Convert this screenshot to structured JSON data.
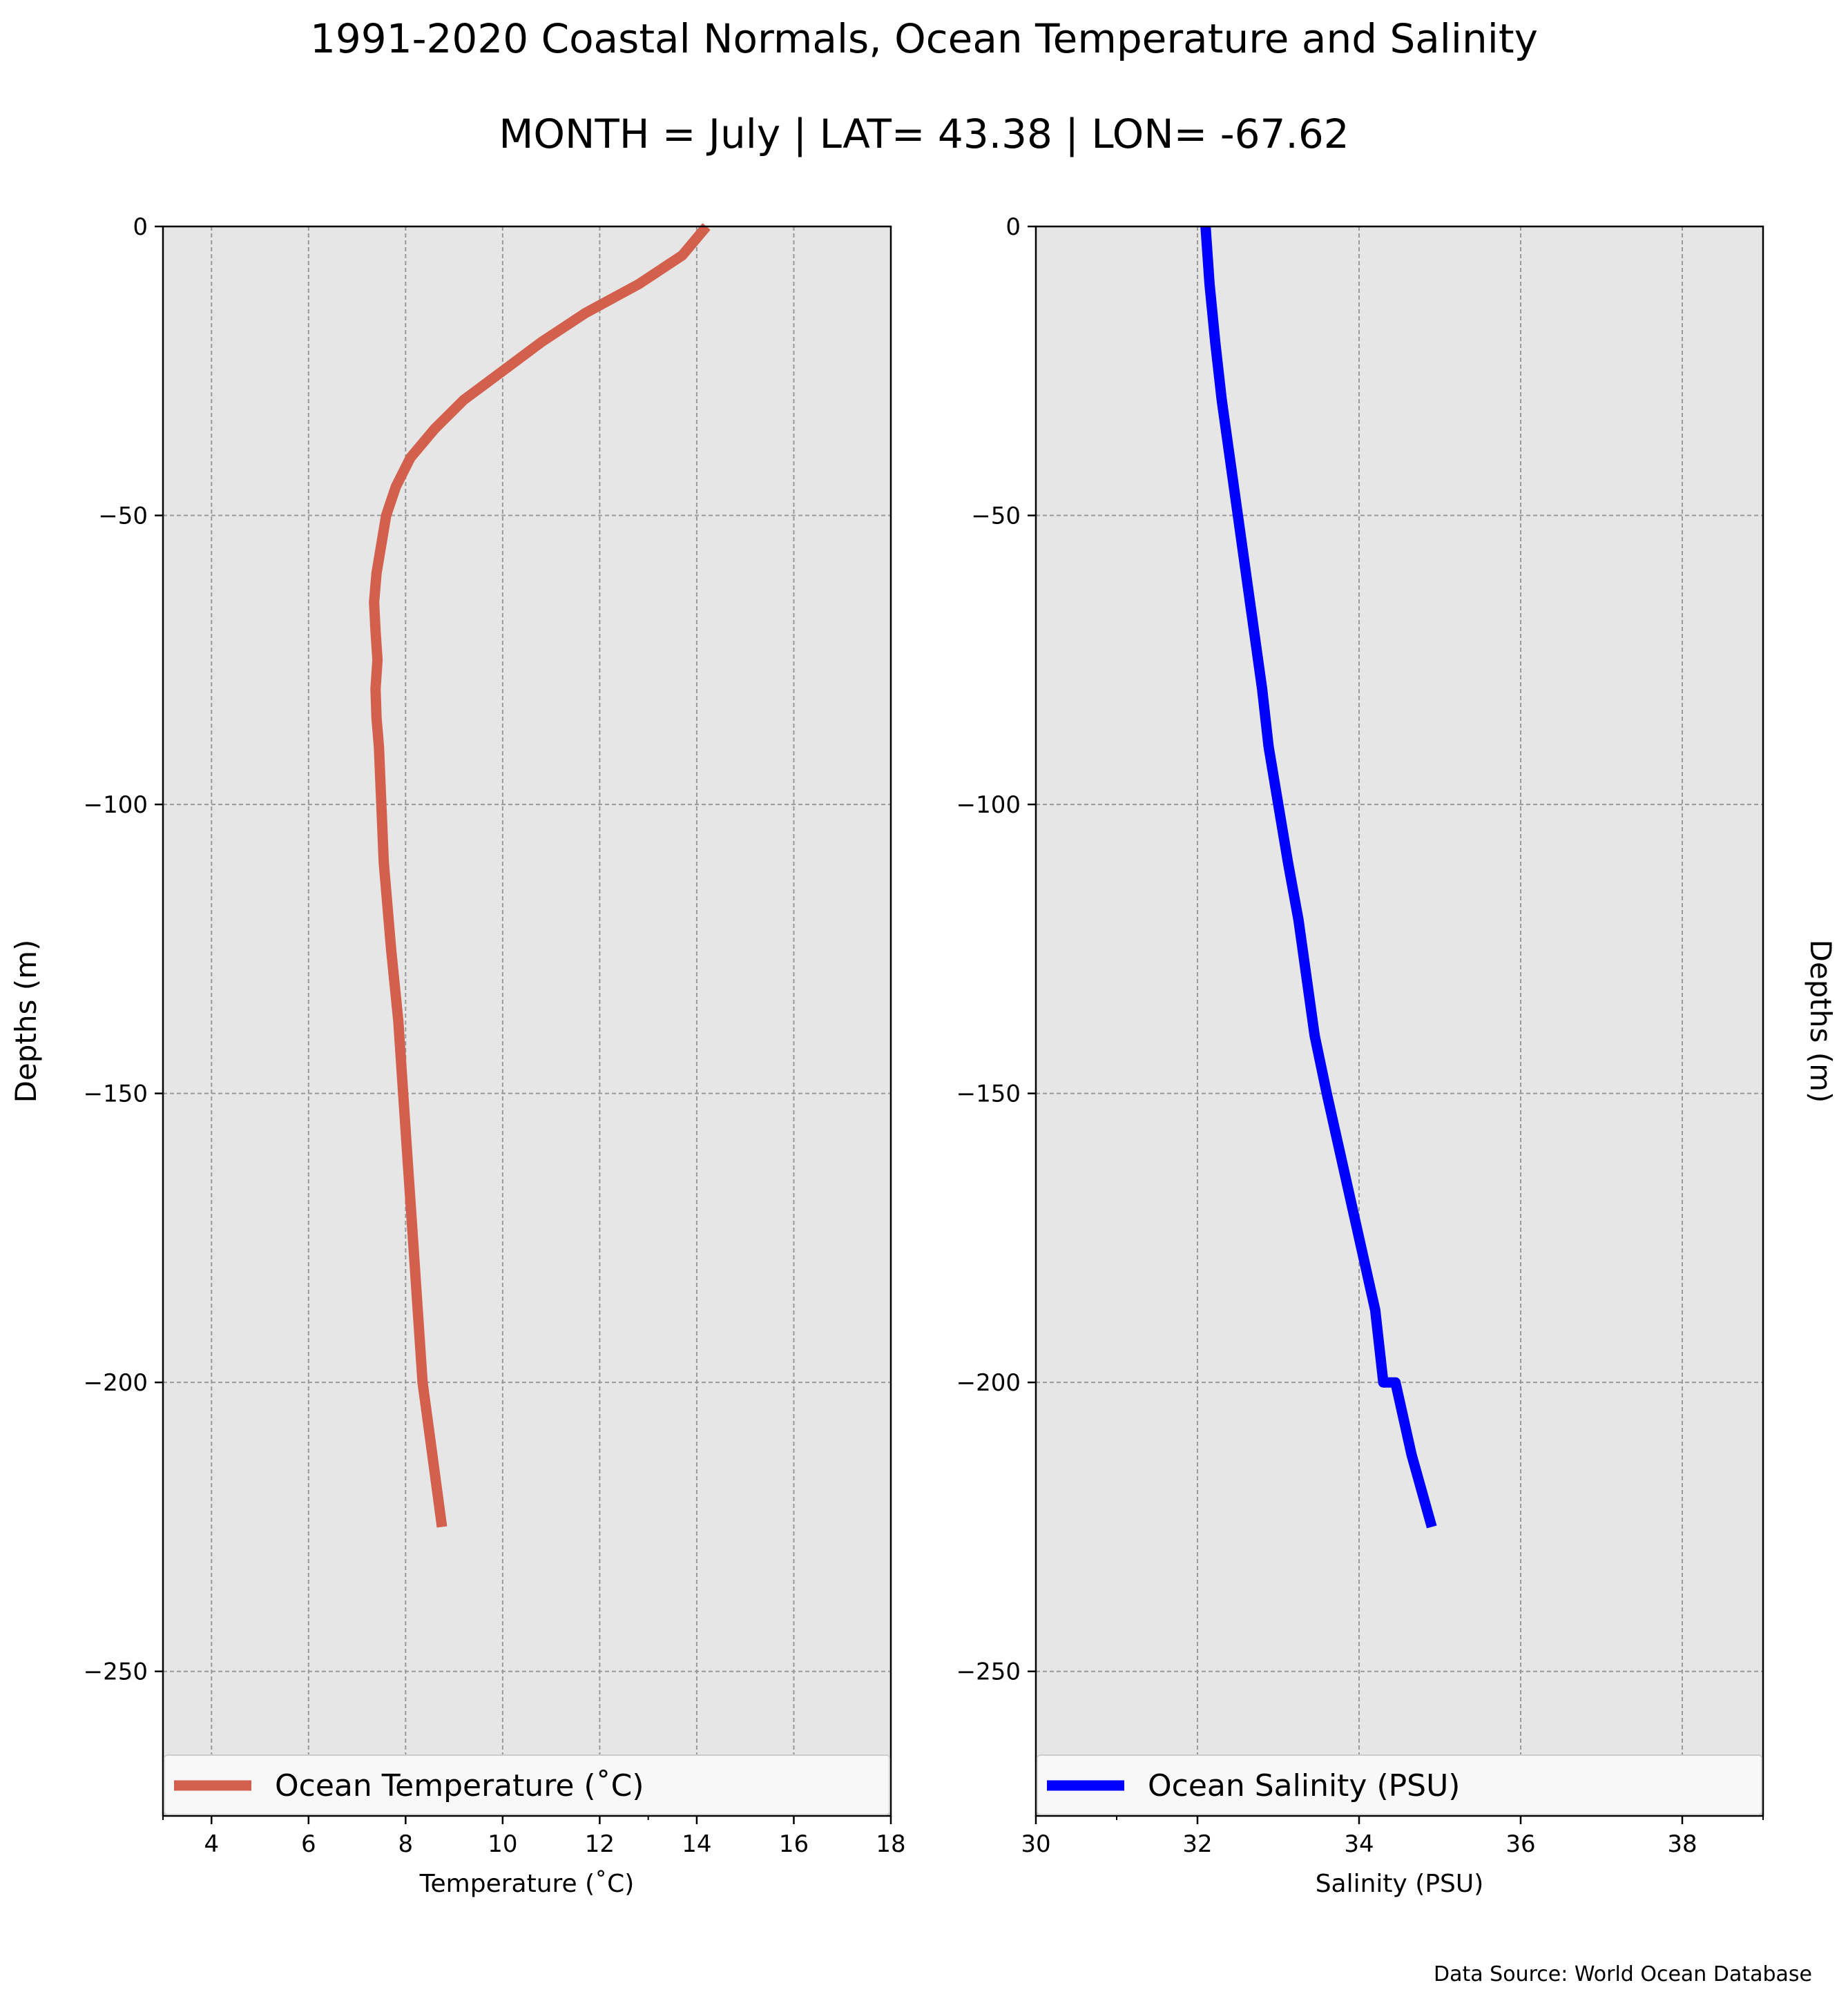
{
  "title": "1991-2020 Coastal Normals, Ocean Temperature and Salinity",
  "subtitle": "MONTH = July | LAT= 43.38 | LON= -67.62",
  "source_note": "Data Source: World Ocean Database",
  "colors": {
    "temperature": "#d35f4d",
    "salinity": "#0000ff",
    "panel_bg": "#e6e6e6",
    "grid": "#999999"
  },
  "chart_data": [
    {
      "type": "line",
      "xlabel": "Temperature ($^\\circ$C)",
      "xlabel_display": "Temperature (˚C)",
      "ylabel": "Depths (m)",
      "xlim": [
        3,
        18
      ],
      "ylim": [
        -275,
        0
      ],
      "xticks": [
        4,
        6,
        8,
        10,
        12,
        14,
        16,
        18
      ],
      "yticks": [
        0,
        -50,
        -100,
        -150,
        -200,
        -250
      ],
      "ytick_labels": [
        "0",
        "−50",
        "−100",
        "−150",
        "−200",
        "−250"
      ],
      "grid": true,
      "legend_location": "lower center",
      "series": [
        {
          "name": "Ocean Temperature (˚C)",
          "color": "#d35f4d",
          "x": [
            14.2,
            13.7,
            12.8,
            11.7,
            10.8,
            10.0,
            9.2,
            8.6,
            8.1,
            7.8,
            7.6,
            7.5,
            7.4,
            7.35,
            7.38,
            7.42,
            7.38,
            7.4,
            7.45,
            7.5,
            7.55,
            7.7,
            7.85,
            7.95,
            8.05,
            8.15,
            8.25,
            8.35,
            8.55,
            8.75
          ],
          "y": [
            0,
            -5,
            -10,
            -15,
            -20,
            -25,
            -30,
            -35,
            -40,
            -45,
            -50,
            -55,
            -60,
            -65,
            -70,
            -75,
            -80,
            -85,
            -90,
            -100,
            -110,
            -125,
            -137.5,
            -150,
            -162.5,
            -175,
            -187.5,
            -200,
            -212.5,
            -225
          ]
        }
      ]
    },
    {
      "type": "line",
      "xlabel": "Salinity (PSU)",
      "ylabel": "Depths (m)",
      "xlim": [
        30,
        39
      ],
      "ylim": [
        -275,
        0
      ],
      "xticks": [
        30,
        32,
        34,
        36,
        38
      ],
      "yticks": [
        0,
        -50,
        -100,
        -150,
        -200,
        -250
      ],
      "ytick_labels": [
        "0",
        "−50",
        "−100",
        "−150",
        "−200",
        "−250"
      ],
      "grid": true,
      "legend_location": "lower center",
      "series": [
        {
          "name": "Ocean Salinity (PSU)",
          "color": "#0000ff",
          "x": [
            32.1,
            32.15,
            32.22,
            32.3,
            32.4,
            32.5,
            32.6,
            32.7,
            32.8,
            32.88,
            33.0,
            33.12,
            33.25,
            33.35,
            33.45,
            33.6,
            33.8,
            34.0,
            34.2,
            34.3,
            34.4,
            34.45,
            34.65,
            34.9
          ],
          "y": [
            0,
            -10,
            -20,
            -30,
            -40,
            -50,
            -60,
            -70,
            -80,
            -90,
            -100,
            -110,
            -120,
            -130,
            -140,
            -150,
            -162.5,
            -175,
            -187.5,
            -200,
            -212.5,
            -225,
            -200,
            -225
          ]
        }
      ]
    }
  ]
}
